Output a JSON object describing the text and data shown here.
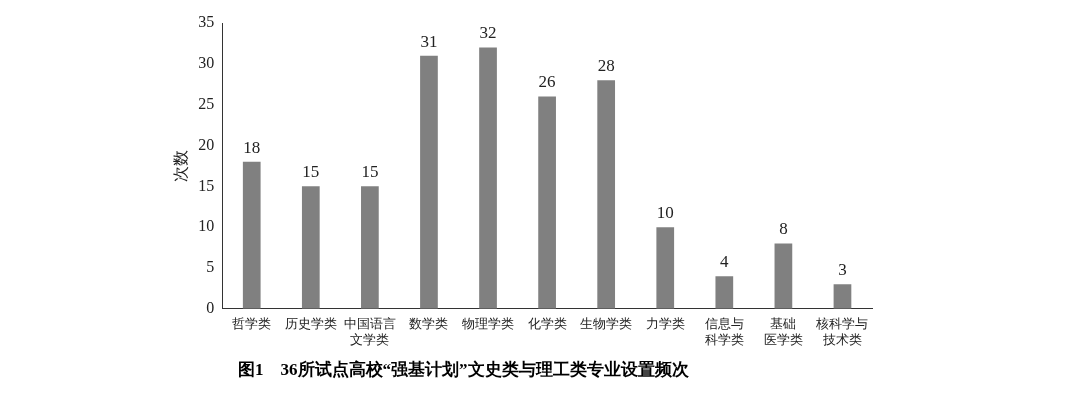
{
  "chart_data": {
    "type": "bar",
    "title": "图1　36所试点高校“强基计划”文史类与理工类专业设置频次",
    "ylabel": "次数",
    "categories": [
      "哲学类",
      "历史学类",
      "中国语言文学类",
      "数学类",
      "物理学类",
      "化学类",
      "生物学类",
      "力学类",
      "信息与科学类",
      "基础医学类",
      "核科学与技术类"
    ],
    "values": [
      18,
      15,
      15,
      31,
      32,
      26,
      28,
      10,
      4,
      8,
      3
    ],
    "color": "#808080",
    "ylim": [
      0,
      35
    ],
    "yticks": [
      0,
      5,
      10,
      15,
      20,
      25,
      30,
      35
    ],
    "grid": false,
    "legend": false,
    "data_labels": true
  }
}
